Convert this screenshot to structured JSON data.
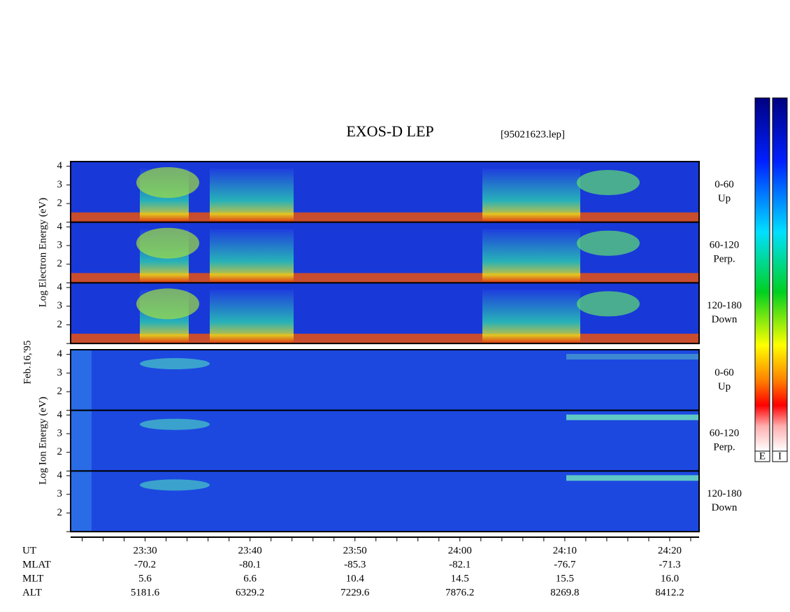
{
  "chart_data": {
    "type": "spectrogram",
    "title": "EXOS-D LEP",
    "file": "[95021623.lep]",
    "date": "Feb.16,'95",
    "groups": [
      {
        "name": "Electron",
        "ylabel": "Log Electron Energy (eV)",
        "panels": [
          {
            "pitch": "0-60",
            "direction": "Up"
          },
          {
            "pitch": "60-120",
            "direction": "Perp."
          },
          {
            "pitch": "120-180",
            "direction": "Down"
          }
        ]
      },
      {
        "name": "Ion",
        "ylabel": "Log Ion Energy (eV)",
        "panels": [
          {
            "pitch": "0-60",
            "direction": "Up"
          },
          {
            "pitch": "60-120",
            "direction": "Perp."
          },
          {
            "pitch": "120-180",
            "direction": "Down"
          }
        ]
      }
    ],
    "ylim": [
      1,
      4.25
    ],
    "yticks": [
      2,
      3,
      4
    ],
    "yminor_ticks": [
      1
    ],
    "xlabel": "UT",
    "xlim": [
      1402.9,
      1462.8
    ],
    "xticks": [
      {
        "value": 1410,
        "label": "23:30"
      },
      {
        "value": 1420,
        "label": "23:40"
      },
      {
        "value": 1430,
        "label": "23:50"
      },
      {
        "value": 1440,
        "label": "24:00"
      },
      {
        "value": 1450,
        "label": "24:10"
      },
      {
        "value": 1460,
        "label": "24:20"
      }
    ],
    "xminor_ticks": [
      1404,
      1406,
      1408,
      1412,
      1414,
      1416,
      1418,
      1422,
      1424,
      1426,
      1428,
      1432,
      1434,
      1436,
      1438,
      1442,
      1444,
      1446,
      1448,
      1452,
      1454,
      1456,
      1458,
      1462
    ],
    "rows": [
      {
        "name": "MLAT",
        "values": [
          "-70.2",
          "-80.1",
          "-85.3",
          "-82.1",
          "-76.7",
          "-71.3"
        ]
      },
      {
        "name": "MLT",
        "values": [
          "5.6",
          "6.6",
          "10.4",
          "14.5",
          "15.5",
          "16.0"
        ]
      },
      {
        "name": "ALT",
        "values": [
          "5181.6",
          "6329.2",
          "7229.6",
          "7876.2",
          "8269.8",
          "8412.2"
        ]
      }
    ],
    "colorbars": [
      "E",
      "I"
    ]
  }
}
